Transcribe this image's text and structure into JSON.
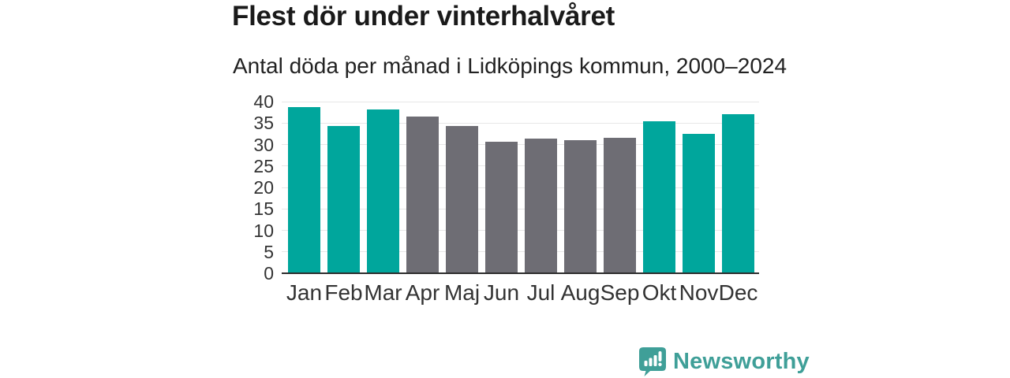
{
  "chart_data": {
    "type": "bar",
    "title": "Flest dör under vinterhalvåret",
    "subtitle": "Antal döda per månad i Lidköpings kommun, 2000–2024",
    "categories": [
      "Jan",
      "Feb",
      "Mar",
      "Apr",
      "Maj",
      "Jun",
      "Jul",
      "Aug",
      "Sep",
      "Okt",
      "Nov",
      "Dec"
    ],
    "values": [
      38.8,
      34.4,
      38.1,
      36.6,
      34.3,
      30.7,
      31.3,
      31.0,
      31.6,
      35.4,
      32.5,
      37.1
    ],
    "bar_colors": [
      "#00a69c",
      "#00a69c",
      "#00a69c",
      "#6e6d74",
      "#6e6d74",
      "#6e6d74",
      "#6e6d74",
      "#6e6d74",
      "#6e6d74",
      "#00a69c",
      "#00a69c",
      "#00a69c"
    ],
    "xlabel": "",
    "ylabel": "",
    "ylim": [
      0,
      40
    ],
    "yticks": [
      0,
      5,
      10,
      15,
      20,
      25,
      30,
      35,
      40
    ],
    "grid": true,
    "legend": false,
    "colors": {
      "accent_teal": "#00a69c",
      "muted_gray": "#6e6d74",
      "gridline": "#e7e7e7",
      "axis": "#2e2e2e",
      "text": "#333333"
    }
  },
  "footer": {
    "brand": "Newsworthy",
    "brand_color": "#3f9f98",
    "logo_icon": "bar-chart-speech-bubble-icon"
  }
}
